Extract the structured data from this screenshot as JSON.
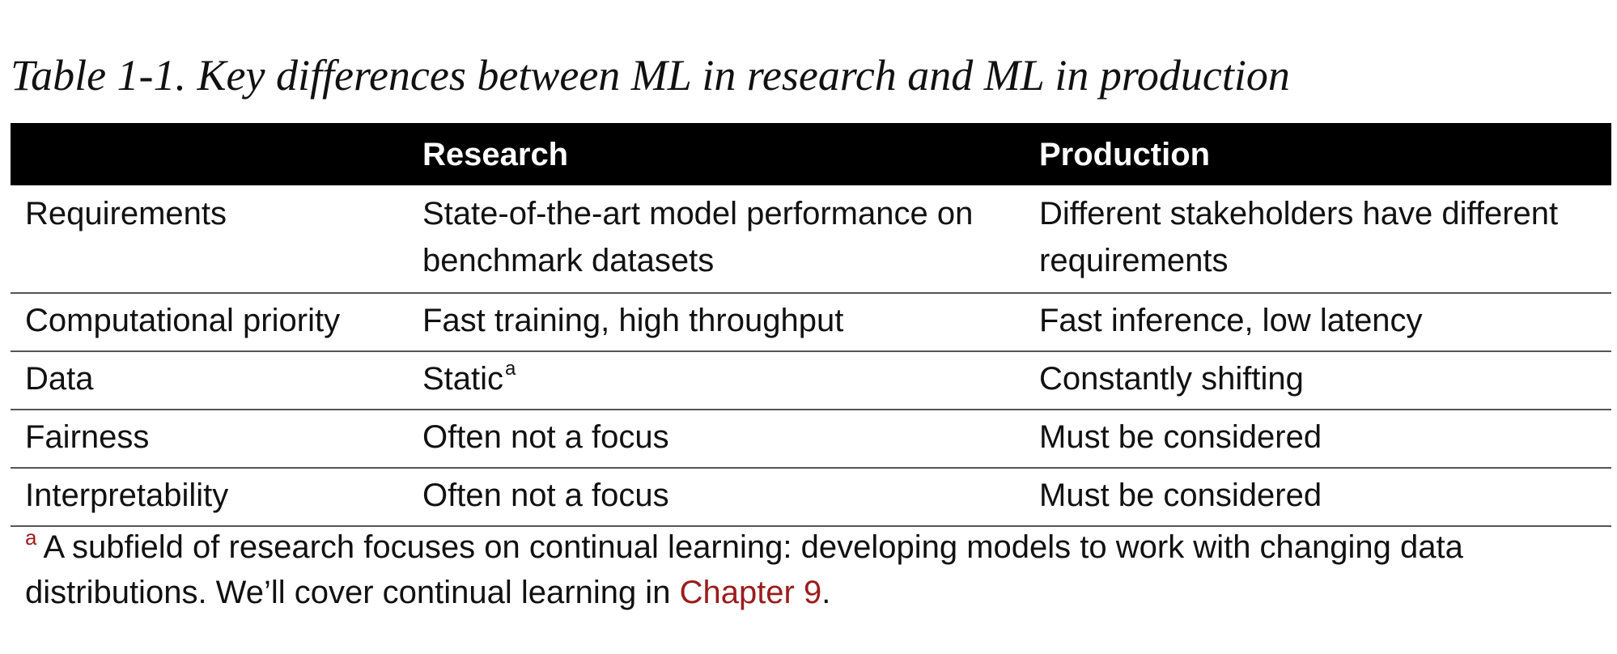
{
  "caption": "Table 1-1. Key differences between ML in research and ML in production",
  "table": {
    "headers": [
      "",
      "Research",
      "Production"
    ],
    "rows": [
      {
        "label": "Requirements",
        "research": "State-of-the-art model performance on benchmark datasets",
        "production": "Different stakeholders have different requirements"
      },
      {
        "label": "Computational priority",
        "research": "Fast training, high throughput",
        "production": "Fast inference, low latency"
      },
      {
        "label": "Data",
        "research": "Static",
        "research_footnote_marker": "a",
        "production": "Constantly shifting"
      },
      {
        "label": "Fairness",
        "research": "Often not a focus",
        "production": "Must be considered"
      },
      {
        "label": "Interpretability",
        "research": "Often not a focus",
        "production": "Must be considered"
      }
    ]
  },
  "footnote": {
    "marker": "a",
    "text": "A subfield of research focuses on continual learning: developing models to work with changing data distributions. We’ll cover continual learning in ",
    "link_text": "Chapter 9",
    "suffix": "."
  },
  "colors": {
    "header_background": "#000000",
    "header_text": "#ffffff",
    "link": "#9b1c1c"
  }
}
